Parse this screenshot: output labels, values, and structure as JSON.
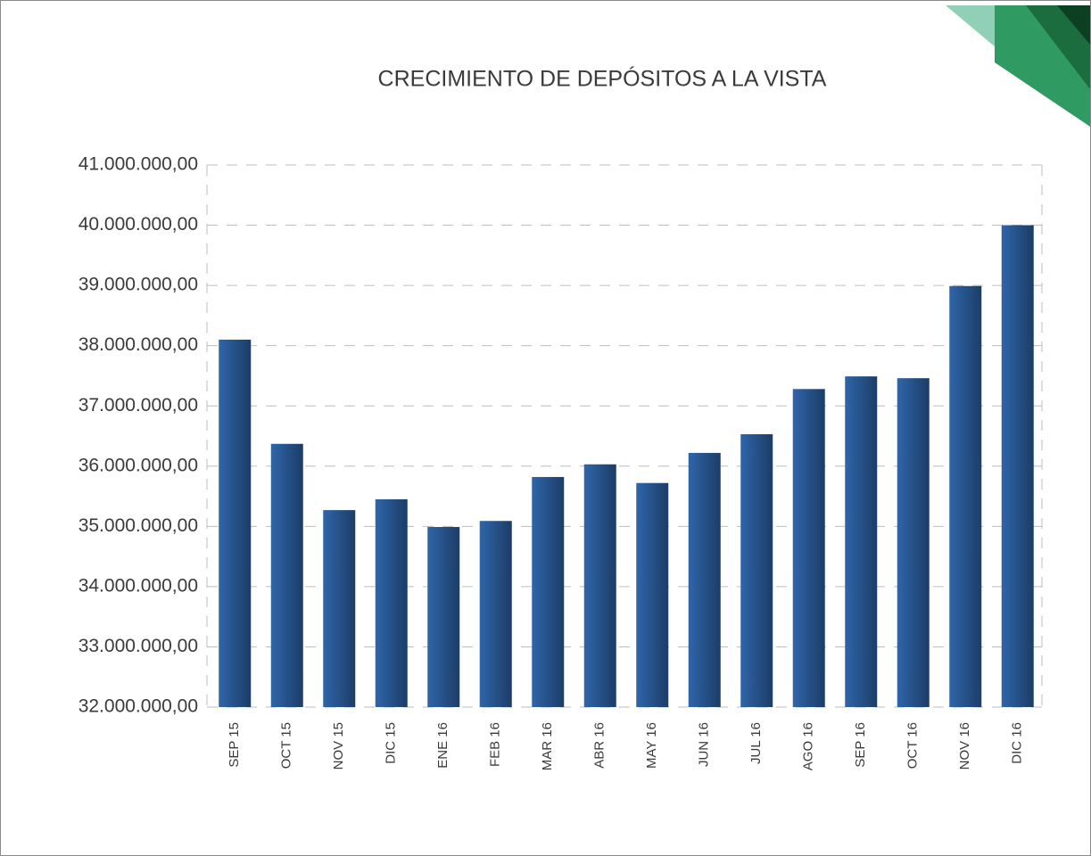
{
  "chart_data": {
    "type": "bar",
    "title": "CRECIMIENTO DE DEPÓSITOS A LA VISTA",
    "categories": [
      "SEP 15",
      "OCT 15",
      "NOV 15",
      "DIC 15",
      "ENE 16",
      "FEB 16",
      "MAR 16",
      "ABR 16",
      "MAY 16",
      "JUN 16",
      "JUL 16",
      "AGO 16",
      "SEP 16",
      "OCT 16",
      "NOV 16",
      "DIC 16"
    ],
    "values": [
      38100000,
      36370000,
      35270000,
      35450000,
      34990000,
      35090000,
      35820000,
      36030000,
      35720000,
      36220000,
      36530000,
      37280000,
      37490000,
      37460000,
      38990000,
      40000000
    ],
    "color": "#2f65aa",
    "ylim": [
      32000000,
      41000000
    ],
    "yticks": [
      {
        "value": 32000000,
        "label": "32.000.000,00"
      },
      {
        "value": 33000000,
        "label": "33.000.000,00"
      },
      {
        "value": 34000000,
        "label": "34.000.000,00"
      },
      {
        "value": 35000000,
        "label": "35.000.000,00"
      },
      {
        "value": 36000000,
        "label": "36.000.000,00"
      },
      {
        "value": 37000000,
        "label": "37.000.000,00"
      },
      {
        "value": 38000000,
        "label": "38.000.000,00"
      },
      {
        "value": 39000000,
        "label": "39.000.000,00"
      },
      {
        "value": 40000000,
        "label": "40.000.000,00"
      },
      {
        "value": 41000000,
        "label": "41.000.000,00"
      }
    ],
    "grid": true
  }
}
